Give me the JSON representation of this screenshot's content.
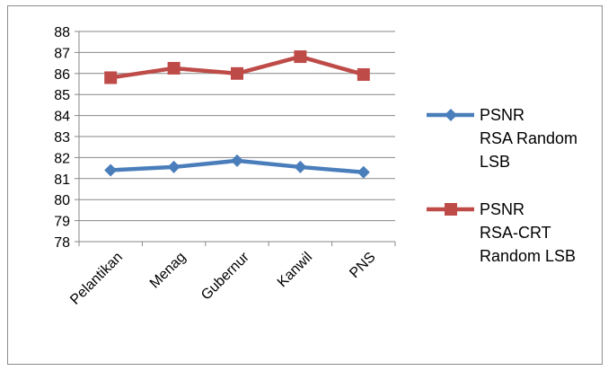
{
  "chart_data": {
    "type": "line",
    "categories": [
      "Pelantikan",
      "Menag",
      "Gubernur",
      "Kanwil",
      "PNS"
    ],
    "ylim": [
      78,
      88
    ],
    "yticks": [
      78,
      79,
      80,
      81,
      82,
      83,
      84,
      85,
      86,
      87,
      88
    ],
    "grid": "horizontal",
    "legend_position": "right",
    "series": [
      {
        "name": "PSNR RSA Random LSB",
        "legend_lines": [
          "PSNR",
          "RSA Random",
          "LSB"
        ],
        "color": "#4a7ebb",
        "marker": "diamond",
        "values": [
          81.4,
          81.55,
          81.85,
          81.55,
          81.3
        ]
      },
      {
        "name": "PSNR RSA-CRT Random LSB",
        "legend_lines": [
          "PSNR",
          "RSA-CRT",
          "Random LSB"
        ],
        "color": "#be4b48",
        "marker": "square",
        "values": [
          85.8,
          86.25,
          86.0,
          86.8,
          85.95
        ]
      }
    ]
  }
}
